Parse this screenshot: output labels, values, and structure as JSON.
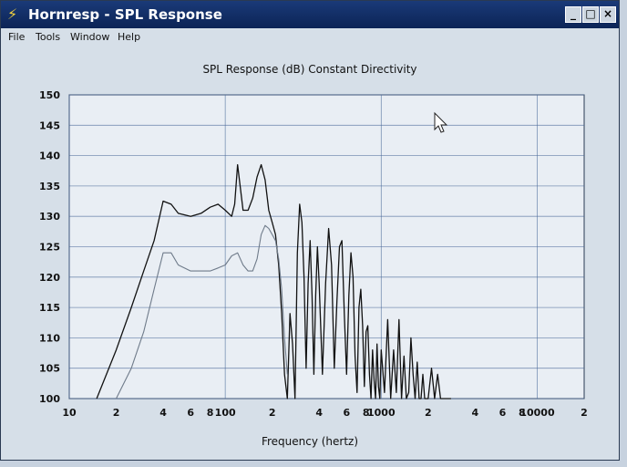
{
  "window": {
    "title": "Hornresp - SPL Response",
    "icon": "hornresp-app-icon",
    "controls": [
      "minimize",
      "maximize",
      "close"
    ],
    "minimize_glyph": "_",
    "maximize_glyph": "□",
    "close_glyph": "×"
  },
  "menu": [
    "File",
    "Tools",
    "Window",
    "Help"
  ],
  "chart": {
    "title": "SPL Response (dB)   Constant Directivity",
    "xlabel": "Frequency (hertz)"
  },
  "chart_data": {
    "type": "line",
    "title": "SPL Response (dB)   Constant Directivity",
    "xlabel": "Frequency (hertz)",
    "ylabel": "",
    "xscale": "log",
    "xlim": [
      10,
      20000
    ],
    "ylim": [
      100,
      150
    ],
    "grid": true,
    "x_tick_labels": [
      {
        "x": 10,
        "label": "10"
      },
      {
        "x": 20,
        "label": "2"
      },
      {
        "x": 40,
        "label": "4"
      },
      {
        "x": 60,
        "label": "6"
      },
      {
        "x": 80,
        "label": "8"
      },
      {
        "x": 100,
        "label": "100"
      },
      {
        "x": 200,
        "label": "2"
      },
      {
        "x": 400,
        "label": "4"
      },
      {
        "x": 600,
        "label": "6"
      },
      {
        "x": 800,
        "label": "8"
      },
      {
        "x": 1000,
        "label": "1000"
      },
      {
        "x": 2000,
        "label": "2"
      },
      {
        "x": 4000,
        "label": "4"
      },
      {
        "x": 6000,
        "label": "6"
      },
      {
        "x": 8000,
        "label": "8"
      },
      {
        "x": 10000,
        "label": "10000"
      },
      {
        "x": 20000,
        "label": "2"
      }
    ],
    "y_ticks": [
      100,
      105,
      110,
      115,
      120,
      125,
      130,
      135,
      140,
      145,
      150
    ],
    "series": [
      {
        "color": "#111111",
        "x": [
          15,
          20,
          25,
          30,
          35,
          40,
          45,
          50,
          60,
          70,
          80,
          90,
          100,
          110,
          115,
          120,
          130,
          140,
          150,
          160,
          170,
          180,
          190,
          200,
          210,
          220,
          230,
          240,
          250,
          260,
          270,
          280,
          290,
          300,
          310,
          320,
          330,
          340,
          350,
          360,
          370,
          380,
          390,
          400,
          420,
          440,
          460,
          480,
          500,
          520,
          540,
          560,
          580,
          600,
          620,
          640,
          660,
          680,
          700,
          720,
          740,
          760,
          780,
          800,
          820,
          840,
          860,
          880,
          900,
          920,
          940,
          960,
          980,
          1000,
          1050,
          1100,
          1150,
          1200,
          1250,
          1300,
          1350,
          1400,
          1450,
          1500,
          1550,
          1600,
          1650,
          1700,
          1750,
          1800,
          1850,
          1900,
          1950,
          2000,
          2100,
          2200,
          2300,
          2400,
          2500,
          2600,
          2700,
          2800
        ],
        "y": [
          100,
          108,
          115,
          121,
          126,
          132.5,
          132,
          130.5,
          130,
          130.5,
          131.5,
          132,
          131,
          130,
          132,
          138.5,
          131,
          131,
          133,
          136.5,
          138.5,
          136,
          131,
          129,
          127,
          122,
          114,
          104,
          100,
          114,
          109,
          100,
          124,
          132,
          129,
          120,
          105,
          119,
          126,
          117,
          104,
          117,
          125,
          119,
          104,
          119,
          128,
          122,
          105,
          116,
          125,
          126,
          114,
          104,
          117,
          124,
          120,
          107,
          101,
          115,
          118,
          112,
          102,
          111,
          112,
          104,
          100,
          108,
          103,
          100,
          109,
          102,
          100,
          108,
          101,
          113,
          100,
          108,
          101,
          113,
          100,
          107,
          100,
          101,
          110,
          104,
          100,
          106,
          100,
          100,
          104,
          100,
          100,
          100,
          105,
          100,
          104,
          100,
          100,
          100,
          100,
          100
        ]
      },
      {
        "color": "#6f7b8a",
        "x": [
          20,
          25,
          30,
          35,
          40,
          45,
          50,
          60,
          70,
          80,
          90,
          100,
          110,
          120,
          130,
          140,
          150,
          160,
          170,
          180,
          190,
          200,
          210,
          220,
          230,
          240,
          250
        ],
        "y": [
          100,
          105,
          111,
          118,
          124,
          124,
          122,
          121,
          121,
          121,
          121.5,
          122,
          123.5,
          124,
          122,
          121,
          121,
          123,
          127,
          128.5,
          128,
          127,
          126,
          123,
          118,
          110,
          104
        ]
      }
    ]
  }
}
